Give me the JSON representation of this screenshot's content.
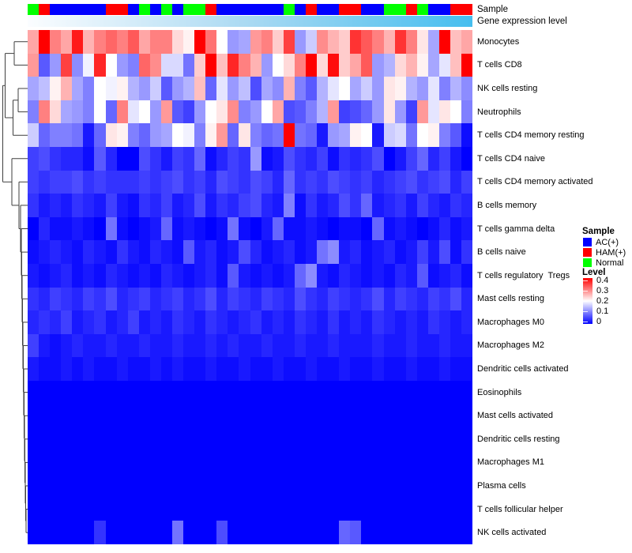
{
  "annotations": {
    "sample_label": "Sample",
    "gene_expr_label": "Gene expression level",
    "sample_groups": [
      "Normal",
      "HAM(+)",
      "AC(+)",
      "AC(+)",
      "AC(+)",
      "AC(+)",
      "AC(+)",
      "HAM(+)",
      "HAM(+)",
      "AC(+)",
      "Normal",
      "AC(+)",
      "Normal",
      "AC(+)",
      "Normal",
      "Normal",
      "HAM(+)",
      "AC(+)",
      "AC(+)",
      "AC(+)",
      "AC(+)",
      "AC(+)",
      "AC(+)",
      "Normal",
      "AC(+)",
      "HAM(+)",
      "AC(+)",
      "AC(+)",
      "HAM(+)",
      "HAM(+)",
      "AC(+)",
      "AC(+)",
      "Normal",
      "Normal",
      "HAM(+)",
      "Normal",
      "AC(+)",
      "AC(+)",
      "HAM(+)",
      "HAM(+)"
    ],
    "gene_expr_gradient": [
      "#FBFDFF",
      "#A9D9F2",
      "#45BEEF"
    ]
  },
  "legend": {
    "sample": {
      "title": "Sample",
      "items": [
        {
          "label": "AC(+)",
          "color": "#0000FF"
        },
        {
          "label": "HAM(+)",
          "color": "#FF0000"
        },
        {
          "label": "Normal",
          "color": "#00FF00"
        }
      ]
    },
    "level": {
      "title": "Level",
      "ticks": [
        "0.4",
        "0.3",
        "0.2",
        "0.1",
        "0"
      ],
      "min": 0,
      "max": 0.4,
      "colors_top_to_bottom": [
        "#FF0000",
        "#FFFFFF",
        "#0000FF"
      ]
    }
  },
  "chart_data": {
    "type": "heatmap",
    "title": "",
    "columns": 40,
    "rows": [
      "Monocytes",
      "T cells CD8",
      "NK cells resting",
      "Neutrophils",
      "T cells CD4 memory resting",
      "T cells CD4 naive",
      "T cells CD4 memory activated",
      "B cells memory",
      "T cells gamma delta",
      "B cells naive",
      "T cells regulatory  Tregs",
      "Mast cells resting",
      "Macrophages M0",
      "Macrophages M2",
      "Dendritic cells activated",
      "Eosinophils",
      "Mast cells activated",
      "Dendritic cells resting",
      "Macrophages M1",
      "Plasma cells",
      "T cells follicular helper",
      "NK cells activated"
    ],
    "color_scale": {
      "domain": [
        0,
        0.2,
        0.4
      ],
      "range": [
        "#0000FF",
        "#FFFFFF",
        "#FF0000"
      ]
    },
    "values": [
      [
        0.27,
        0.4,
        0.3,
        0.27,
        0.38,
        0.26,
        0.3,
        0.32,
        0.3,
        0.33,
        0.27,
        0.3,
        0.3,
        0.23,
        0.21,
        0.4,
        0.31,
        0.2,
        0.12,
        0.13,
        0.28,
        0.3,
        0.24,
        0.35,
        0.12,
        0.16,
        0.29,
        0.26,
        0.24,
        0.36,
        0.33,
        0.3,
        0.26,
        0.36,
        0.3,
        0.22,
        0.13,
        0.4,
        0.25,
        0.27
      ],
      [
        0.28,
        0.07,
        0.12,
        0.35,
        0.11,
        0.19,
        0.37,
        0.2,
        0.12,
        0.1,
        0.32,
        0.29,
        0.17,
        0.17,
        0.09,
        0.24,
        0.4,
        0.25,
        0.37,
        0.3,
        0.26,
        0.12,
        0.2,
        0.23,
        0.3,
        0.4,
        0.23,
        0.39,
        0.24,
        0.27,
        0.33,
        0.12,
        0.14,
        0.23,
        0.26,
        0.21,
        0.13,
        0.18,
        0.25,
        0.4
      ],
      [
        0.13,
        0.15,
        0.21,
        0.26,
        0.13,
        0.1,
        0.2,
        0.19,
        0.21,
        0.14,
        0.12,
        0.16,
        0.07,
        0.12,
        0.14,
        0.25,
        0.08,
        0.18,
        0.12,
        0.15,
        0.06,
        0.13,
        0.11,
        0.26,
        0.1,
        0.07,
        0.14,
        0.18,
        0.2,
        0.13,
        0.16,
        0.12,
        0.22,
        0.21,
        0.14,
        0.12,
        0.18,
        0.1,
        0.14,
        0.11
      ],
      [
        0.1,
        0.3,
        0.23,
        0.13,
        0.12,
        0.1,
        0.2,
        0.08,
        0.3,
        0.18,
        0.2,
        0.12,
        0.28,
        0.07,
        0.05,
        0.12,
        0.2,
        0.22,
        0.29,
        0.1,
        0.12,
        0.2,
        0.27,
        0.06,
        0.07,
        0.1,
        0.14,
        0.28,
        0.05,
        0.06,
        0.08,
        0.12,
        0.22,
        0.12,
        0.05,
        0.28,
        0.18,
        0.22,
        0.2,
        0.1
      ],
      [
        0.16,
        0.08,
        0.1,
        0.1,
        0.09,
        0.02,
        0.08,
        0.22,
        0.21,
        0.1,
        0.08,
        0.12,
        0.13,
        0.2,
        0.19,
        0.1,
        0.21,
        0.28,
        0.08,
        0.22,
        0.1,
        0.08,
        0.09,
        0.4,
        0.09,
        0.08,
        0.02,
        0.12,
        0.13,
        0.21,
        0.2,
        0.02,
        0.16,
        0.17,
        0.09,
        0.2,
        0.21,
        0.1,
        0.07,
        0.01
      ],
      [
        0.05,
        0.06,
        0.04,
        0.03,
        0.03,
        0.01,
        0.07,
        0.03,
        0.0,
        0.0,
        0.06,
        0.04,
        0.02,
        0.05,
        0.04,
        0.08,
        0.01,
        0.03,
        0.05,
        0.04,
        0.12,
        0.01,
        0.02,
        0.06,
        0.04,
        0.03,
        0.05,
        0.01,
        0.04,
        0.03,
        0.04,
        0.06,
        0.0,
        0.02,
        0.05,
        0.08,
        0.03,
        0.05,
        0.02,
        0.0
      ],
      [
        0.05,
        0.04,
        0.05,
        0.05,
        0.06,
        0.04,
        0.05,
        0.04,
        0.04,
        0.04,
        0.05,
        0.04,
        0.05,
        0.06,
        0.04,
        0.05,
        0.03,
        0.06,
        0.05,
        0.04,
        0.06,
        0.05,
        0.03,
        0.08,
        0.04,
        0.05,
        0.04,
        0.06,
        0.05,
        0.04,
        0.05,
        0.03,
        0.04,
        0.05,
        0.06,
        0.04,
        0.05,
        0.06,
        0.03,
        0.05
      ],
      [
        0.04,
        0.02,
        0.03,
        0.02,
        0.04,
        0.03,
        0.02,
        0.05,
        0.02,
        0.01,
        0.04,
        0.03,
        0.05,
        0.02,
        0.03,
        0.06,
        0.02,
        0.04,
        0.03,
        0.05,
        0.06,
        0.03,
        0.02,
        0.1,
        0.01,
        0.04,
        0.02,
        0.03,
        0.06,
        0.04,
        0.08,
        0.02,
        0.03,
        0.04,
        0.02,
        0.05,
        0.03,
        0.02,
        0.04,
        0.03
      ],
      [
        0.0,
        0.03,
        0.01,
        0.01,
        0.02,
        0.01,
        0.0,
        0.09,
        0.01,
        0.0,
        0.01,
        0.02,
        0.08,
        0.01,
        0.02,
        0.01,
        0.0,
        0.01,
        0.09,
        0.01,
        0.0,
        0.02,
        0.08,
        0.01,
        0.01,
        0.02,
        0.01,
        0.0,
        0.01,
        0.01,
        0.0,
        0.08,
        0.01,
        0.02,
        0.01,
        0.0,
        0.01,
        0.03,
        0.01,
        0.02
      ],
      [
        0.01,
        0.02,
        0.03,
        0.02,
        0.01,
        0.03,
        0.02,
        0.01,
        0.04,
        0.02,
        0.01,
        0.03,
        0.02,
        0.01,
        0.07,
        0.02,
        0.03,
        0.01,
        0.02,
        0.06,
        0.03,
        0.01,
        0.02,
        0.03,
        0.01,
        0.02,
        0.09,
        0.11,
        0.02,
        0.03,
        0.01,
        0.02,
        0.03,
        0.01,
        0.02,
        0.05,
        0.02,
        0.06,
        0.01,
        0.04
      ],
      [
        0.02,
        0.01,
        0.02,
        0.03,
        0.01,
        0.02,
        0.01,
        0.03,
        0.02,
        0.01,
        0.02,
        0.01,
        0.03,
        0.02,
        0.01,
        0.02,
        0.03,
        0.01,
        0.07,
        0.02,
        0.01,
        0.02,
        0.01,
        0.02,
        0.08,
        0.11,
        0.02,
        0.01,
        0.03,
        0.02,
        0.01,
        0.02,
        0.01,
        0.03,
        0.02,
        0.07,
        0.01,
        0.02,
        0.03,
        0.01
      ],
      [
        0.04,
        0.03,
        0.05,
        0.04,
        0.03,
        0.05,
        0.04,
        0.06,
        0.03,
        0.04,
        0.05,
        0.03,
        0.04,
        0.05,
        0.03,
        0.04,
        0.06,
        0.03,
        0.05,
        0.04,
        0.03,
        0.05,
        0.04,
        0.03,
        0.06,
        0.04,
        0.03,
        0.05,
        0.04,
        0.03,
        0.04,
        0.06,
        0.03,
        0.05,
        0.04,
        0.03,
        0.05,
        0.04,
        0.06,
        0.03
      ],
      [
        0.03,
        0.04,
        0.03,
        0.05,
        0.02,
        0.03,
        0.04,
        0.02,
        0.03,
        0.05,
        0.02,
        0.03,
        0.02,
        0.04,
        0.03,
        0.02,
        0.04,
        0.03,
        0.02,
        0.03,
        0.04,
        0.02,
        0.03,
        0.02,
        0.04,
        0.03,
        0.02,
        0.04,
        0.02,
        0.03,
        0.02,
        0.04,
        0.03,
        0.02,
        0.03,
        0.02,
        0.04,
        0.03,
        0.02,
        0.03
      ],
      [
        0.05,
        0.02,
        0.01,
        0.02,
        0.03,
        0.02,
        0.02,
        0.03,
        0.02,
        0.02,
        0.03,
        0.02,
        0.02,
        0.03,
        0.02,
        0.02,
        0.03,
        0.02,
        0.03,
        0.02,
        0.02,
        0.03,
        0.02,
        0.02,
        0.03,
        0.02,
        0.02,
        0.03,
        0.02,
        0.02,
        0.02,
        0.03,
        0.02,
        0.02,
        0.03,
        0.02,
        0.02,
        0.03,
        0.02,
        0.02
      ],
      [
        0.02,
        0.01,
        0.01,
        0.02,
        0.01,
        0.02,
        0.01,
        0.01,
        0.02,
        0.01,
        0.01,
        0.02,
        0.01,
        0.02,
        0.01,
        0.01,
        0.02,
        0.01,
        0.01,
        0.02,
        0.01,
        0.01,
        0.02,
        0.01,
        0.01,
        0.02,
        0.01,
        0.01,
        0.02,
        0.01,
        0.01,
        0.02,
        0.01,
        0.01,
        0.02,
        0.01,
        0.01,
        0.02,
        0.01,
        0.01
      ],
      [
        0,
        0,
        0,
        0,
        0,
        0,
        0,
        0,
        0,
        0,
        0,
        0,
        0,
        0,
        0,
        0,
        0,
        0,
        0,
        0,
        0,
        0,
        0,
        0,
        0,
        0,
        0,
        0,
        0,
        0,
        0,
        0,
        0,
        0,
        0,
        0,
        0,
        0,
        0,
        0
      ],
      [
        0,
        0,
        0,
        0,
        0,
        0,
        0,
        0,
        0,
        0,
        0,
        0,
        0,
        0,
        0,
        0,
        0,
        0,
        0,
        0,
        0,
        0,
        0,
        0,
        0,
        0,
        0,
        0,
        0,
        0,
        0,
        0,
        0,
        0,
        0,
        0,
        0,
        0,
        0,
        0
      ],
      [
        0,
        0,
        0,
        0,
        0,
        0,
        0,
        0,
        0,
        0,
        0,
        0,
        0,
        0,
        0,
        0,
        0,
        0,
        0,
        0,
        0,
        0,
        0,
        0,
        0,
        0,
        0,
        0,
        0,
        0,
        0,
        0,
        0,
        0,
        0,
        0,
        0,
        0,
        0,
        0
      ],
      [
        0,
        0,
        0,
        0,
        0,
        0,
        0,
        0,
        0,
        0,
        0,
        0,
        0,
        0,
        0,
        0,
        0,
        0,
        0,
        0,
        0,
        0,
        0,
        0,
        0,
        0,
        0,
        0,
        0,
        0,
        0,
        0,
        0,
        0,
        0,
        0,
        0,
        0,
        0,
        0
      ],
      [
        0,
        0,
        0,
        0,
        0,
        0,
        0,
        0,
        0,
        0,
        0,
        0,
        0,
        0,
        0,
        0,
        0,
        0,
        0,
        0,
        0,
        0,
        0,
        0,
        0,
        0,
        0,
        0,
        0,
        0,
        0,
        0,
        0,
        0,
        0,
        0,
        0,
        0,
        0,
        0
      ],
      [
        0,
        0,
        0,
        0,
        0,
        0,
        0,
        0,
        0,
        0,
        0,
        0,
        0,
        0,
        0,
        0,
        0,
        0,
        0,
        0,
        0,
        0,
        0,
        0,
        0,
        0,
        0,
        0,
        0,
        0,
        0,
        0,
        0,
        0,
        0,
        0,
        0,
        0,
        0,
        0
      ],
      [
        0,
        0,
        0,
        0,
        0,
        0,
        0.04,
        0,
        0,
        0,
        0,
        0,
        0,
        0.09,
        0,
        0,
        0,
        0.06,
        0,
        0,
        0,
        0,
        0,
        0,
        0,
        0,
        0,
        0,
        0.08,
        0.07,
        0,
        0,
        0,
        0,
        0,
        0,
        0,
        0,
        0,
        0
      ]
    ],
    "dendrogram": {
      "segments": [
        [
          18,
          52.8,
          35,
          52.8
        ],
        [
          18,
          82.4,
          35,
          82.4
        ],
        [
          18,
          52.8,
          18,
          82.4
        ],
        [
          23,
          112,
          35,
          112
        ],
        [
          23,
          141.6,
          35,
          141.6
        ],
        [
          23,
          112,
          23,
          141.6
        ],
        [
          16.5,
          126.8,
          23,
          126.8
        ],
        [
          16.5,
          171.2,
          35,
          171.2
        ],
        [
          16.5,
          126.8,
          16.5,
          171.2
        ],
        [
          6.5,
          67.6,
          18,
          67.6
        ],
        [
          6.5,
          149,
          16.5,
          149
        ],
        [
          6.5,
          67.6,
          6.5,
          149
        ],
        [
          15,
          200.7,
          35,
          200.7
        ],
        [
          15,
          259.9,
          24,
          259.9
        ],
        [
          15,
          200.7,
          15,
          259.9
        ],
        [
          24,
          230.3,
          35,
          230.3
        ],
        [
          24,
          289.5,
          26,
          289.5
        ],
        [
          24,
          230.3,
          24,
          289.5
        ],
        [
          26,
          259.9,
          35,
          259.9
        ],
        [
          26,
          319,
          27,
          319
        ],
        [
          26,
          259.9,
          26,
          319
        ],
        [
          27,
          289.5,
          35,
          289.5
        ],
        [
          27,
          348.6,
          27.5,
          348.6
        ],
        [
          27,
          289.5,
          27,
          348.6
        ],
        [
          27.5,
          319.1,
          35,
          319.1
        ],
        [
          27.5,
          378.2,
          28,
          378.2
        ],
        [
          27.5,
          319.1,
          27.5,
          378.2
        ],
        [
          28,
          348.7,
          35,
          348.7
        ],
        [
          28,
          407.8,
          28.5,
          407.8
        ],
        [
          28,
          348.7,
          28,
          407.8
        ],
        [
          28.5,
          378.3,
          35,
          378.3
        ],
        [
          28.5,
          437.4,
          29,
          437.4
        ],
        [
          28.5,
          378.3,
          28.5,
          437.4
        ],
        [
          29,
          407.9,
          35,
          407.9
        ],
        [
          29,
          466.9,
          29.5,
          466.9
        ],
        [
          29,
          407.9,
          29,
          466.9
        ],
        [
          29.5,
          437.5,
          35,
          437.5
        ],
        [
          29.5,
          496.4,
          30,
          496.4
        ],
        [
          29.5,
          437.5,
          29.5,
          496.4
        ],
        [
          30,
          467,
          35,
          467
        ],
        [
          30,
          525.7,
          30.5,
          525.7
        ],
        [
          30,
          467,
          30,
          525.7
        ],
        [
          30.5,
          496.6,
          35,
          496.6
        ],
        [
          30.5,
          554.9,
          31,
          554.9
        ],
        [
          30.5,
          496.6,
          30.5,
          554.9
        ],
        [
          31,
          526.2,
          35,
          526.2
        ],
        [
          31,
          583.5,
          31.5,
          583.5
        ],
        [
          31,
          526.2,
          31,
          583.5
        ],
        [
          31.5,
          555.8,
          35,
          555.8
        ],
        [
          31.5,
          611.3,
          32,
          611.3
        ],
        [
          31.5,
          555.8,
          31.5,
          611.3
        ],
        [
          32,
          585.4,
          35,
          585.4
        ],
        [
          32,
          637.2,
          32.5,
          637.2
        ],
        [
          32,
          585.4,
          32,
          637.2
        ],
        [
          32.5,
          615,
          35,
          615
        ],
        [
          32.5,
          659.4,
          33,
          659.4
        ],
        [
          32.5,
          615,
          32.5,
          659.4
        ],
        [
          33,
          644.6,
          35,
          644.6
        ],
        [
          33,
          674.2,
          35,
          674.2
        ],
        [
          33,
          644.6,
          33,
          674.2
        ],
        [
          3.5,
          108.3,
          6.5,
          108.3
        ],
        [
          3.5,
          230.3,
          15,
          230.3
        ],
        [
          3.5,
          108.3,
          3.5,
          230.3
        ]
      ]
    }
  }
}
